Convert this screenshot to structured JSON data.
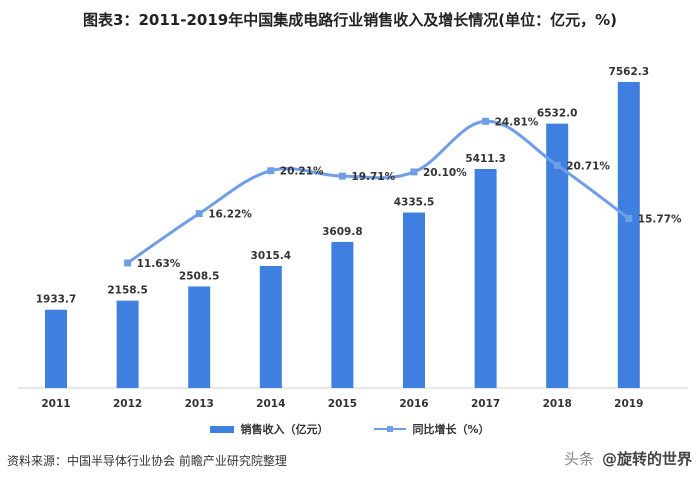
{
  "title": "图表3：2011-2019年中国集成电路行业销售收入及增长情况(单位：亿元，%)",
  "chart_data": {
    "type": "bar",
    "categories": [
      "2011",
      "2012",
      "2013",
      "2014",
      "2015",
      "2016",
      "2017",
      "2018",
      "2019"
    ],
    "series": [
      {
        "name": "销售收入（亿元）",
        "kind": "bar",
        "axis": "left",
        "color": "#3f7fe0",
        "values": [
          1933.7,
          2158.5,
          2508.5,
          3015.4,
          3609.8,
          4335.5,
          5411.3,
          6532.0,
          7562.3
        ],
        "labels": [
          "1933.7",
          "2158.5",
          "2508.5",
          "3015.4",
          "3609.8",
          "4335.5",
          "5411.3",
          "6532.0",
          "7562.3"
        ]
      },
      {
        "name": "同比增长（%）",
        "kind": "line",
        "axis": "right",
        "color": "#6f9ee6",
        "values": [
          null,
          11.63,
          16.22,
          20.21,
          19.71,
          20.1,
          24.81,
          20.71,
          15.77
        ],
        "labels": [
          "",
          "11.63%",
          "16.22%",
          "20.21%",
          "19.71%",
          "20.10%",
          "24.81%",
          "20.71%",
          "15.77%"
        ]
      }
    ],
    "ylim_left": [
      0,
      8500
    ],
    "ylim_right": [
      0,
      32
    ],
    "grid": false,
    "legend_position": "bottom"
  },
  "source_text": "资料来源：中国半导体行业协会 前瞻产业研究院整理",
  "brand": {
    "prefix": "头条",
    "name": "@旋转的世界"
  }
}
